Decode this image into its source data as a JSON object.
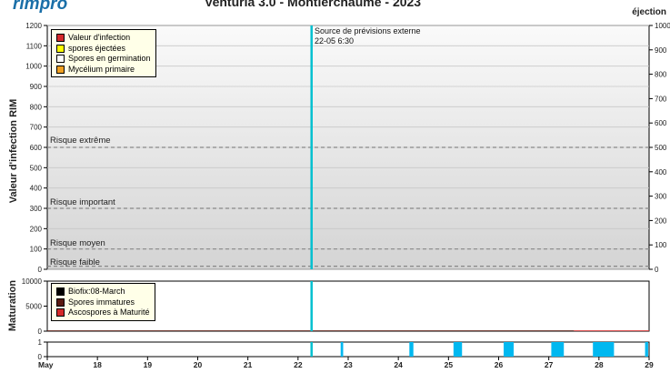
{
  "header": {
    "logo": "rimpro",
    "title": "Venturia 3.0 - Montierchaume - 2023",
    "right_axis_title": "éjection"
  },
  "colors": {
    "forecast_line": "#00c0d0",
    "infection": "#d42a2a",
    "ejected": "#ffff00",
    "germinating": "#ffffff",
    "mycelium": "#f0a020",
    "biofix": "#000000",
    "immature": "#5a1a10",
    "mature": "#d42a2a",
    "wetness": "#00b8f0"
  },
  "chart_data": [
    {
      "type": "line",
      "name": "infection",
      "title": "Venturia 3.0 - Montierchaume - 2023",
      "ylabel": "Valeur d'infection RIM",
      "ylim": [
        0,
        1200
      ],
      "yticks": [
        0,
        100,
        200,
        300,
        400,
        500,
        600,
        700,
        800,
        900,
        1000,
        1100,
        1200
      ],
      "y2label": "éjection",
      "y2lim": [
        0,
        1000
      ],
      "y2ticks": [
        0,
        100,
        200,
        300,
        400,
        500,
        600,
        700,
        800,
        900,
        1000
      ],
      "grid": true,
      "legend_position": "top-left",
      "legend": [
        "Valeur d'infection",
        "spores éjectées",
        "Spores en germination",
        "Mycélium primaire"
      ],
      "risk_levels": [
        {
          "label": "Risque extrême",
          "value": 600
        },
        {
          "label": "Risque important",
          "value": 300
        },
        {
          "label": "Risque moyen",
          "value": 100
        },
        {
          "label": "Risque faible",
          "value": 15
        }
      ],
      "annotation": {
        "line1": "Source de prévisions externe",
        "line2": "22-05 6:30",
        "x": 22.27
      },
      "series": []
    },
    {
      "type": "area",
      "name": "maturation",
      "ylabel": "Maturation",
      "ylim": [
        0,
        10000
      ],
      "yticks": [
        0,
        5000,
        10000
      ],
      "legend_position": "top-left",
      "legend": [
        "Biofix:08-March",
        "Spores immatures",
        "Ascospores à Maturité"
      ],
      "series": [
        {
          "name": "Spores immatures",
          "x": [
            17,
            27.5
          ],
          "values": [
            150,
            150
          ]
        },
        {
          "name": "Ascospores à Maturité",
          "x": [
            27.5,
            29
          ],
          "values": [
            150,
            150
          ]
        }
      ]
    },
    {
      "type": "bar",
      "name": "wetness",
      "ylim": [
        0,
        1
      ],
      "yticks": [
        0,
        1
      ],
      "intervals": [
        [
          22.85,
          22.9
        ],
        [
          24.22,
          24.3
        ],
        [
          25.1,
          25.27
        ],
        [
          26.1,
          26.3
        ],
        [
          27.05,
          27.3
        ],
        [
          27.88,
          28.3
        ],
        [
          28.92,
          28.98
        ]
      ]
    }
  ],
  "x_axis": {
    "labels": [
      "May",
      "18",
      "19",
      "20",
      "21",
      "22",
      "23",
      "24",
      "25",
      "26",
      "27",
      "28",
      "29"
    ],
    "values": [
      17,
      18,
      19,
      20,
      21,
      22,
      23,
      24,
      25,
      26,
      27,
      28,
      29
    ]
  }
}
